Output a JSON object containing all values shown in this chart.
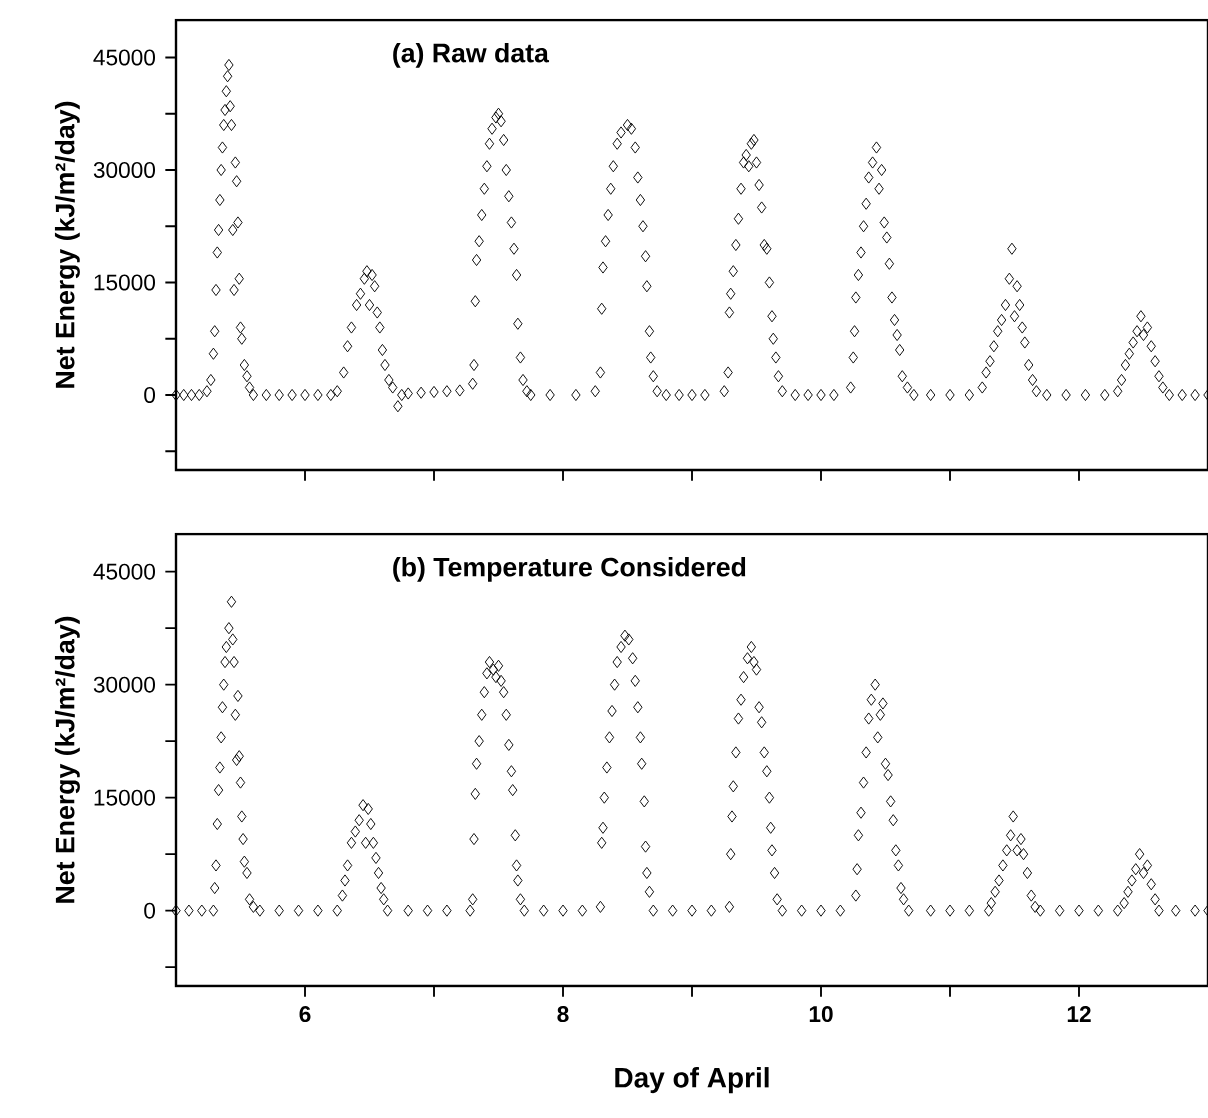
{
  "chart_data": [
    {
      "type": "scatter",
      "title": "(a) Raw data",
      "ylabel": "Net Energy (kJ/m²/day)",
      "xlim": [
        5,
        13
      ],
      "ylim": [
        -10000,
        50000
      ],
      "tick_labels": "y",
      "marker": "diamond",
      "xticks": [
        {
          "value": 6,
          "label": null
        },
        {
          "value": 7,
          "label": null
        },
        {
          "value": 8,
          "label": null
        },
        {
          "value": 9,
          "label": null
        },
        {
          "value": 10,
          "label": null
        },
        {
          "value": 11,
          "label": null
        },
        {
          "value": 12,
          "label": null
        }
      ],
      "yticks": [
        {
          "value": -7500,
          "label": null
        },
        0,
        {
          "value": 7500,
          "label": null
        },
        15000,
        {
          "value": 22500,
          "label": null
        },
        30000,
        {
          "value": 37500,
          "label": null
        },
        45000
      ],
      "series": [
        {
          "color": "#000000",
          "x": [
            5.0,
            5.06,
            5.12,
            5.18,
            5.24,
            5.27,
            5.29,
            5.3,
            5.31,
            5.32,
            5.33,
            5.34,
            5.35,
            5.36,
            5.37,
            5.38,
            5.39,
            5.4,
            5.41,
            5.42,
            5.43,
            5.44,
            5.45,
            5.46,
            5.47,
            5.48,
            5.49,
            5.5,
            5.51,
            5.53,
            5.55,
            5.57,
            5.6,
            5.7,
            5.8,
            5.9,
            6.0,
            6.1,
            6.2,
            6.25,
            6.3,
            6.33,
            6.36,
            6.4,
            6.43,
            6.46,
            6.48,
            6.5,
            6.52,
            6.54,
            6.56,
            6.58,
            6.6,
            6.62,
            6.65,
            6.68,
            6.72,
            6.75,
            6.8,
            6.9,
            7.0,
            7.1,
            7.2,
            7.3,
            7.31,
            7.32,
            7.33,
            7.35,
            7.37,
            7.39,
            7.41,
            7.43,
            7.45,
            7.48,
            7.5,
            7.52,
            7.54,
            7.56,
            7.58,
            7.6,
            7.62,
            7.64,
            7.65,
            7.67,
            7.69,
            7.72,
            7.75,
            7.9,
            8.1,
            8.25,
            8.29,
            8.3,
            8.31,
            8.33,
            8.35,
            8.37,
            8.39,
            8.42,
            8.45,
            8.5,
            8.53,
            8.56,
            8.58,
            8.6,
            8.62,
            8.64,
            8.65,
            8.67,
            8.68,
            8.7,
            8.73,
            8.8,
            8.9,
            9.0,
            9.1,
            9.25,
            9.28,
            9.29,
            9.3,
            9.32,
            9.34,
            9.36,
            9.38,
            9.4,
            9.42,
            9.44,
            9.46,
            9.48,
            9.5,
            9.52,
            9.54,
            9.56,
            9.58,
            9.6,
            9.62,
            9.63,
            9.65,
            9.67,
            9.7,
            9.8,
            9.9,
            10.0,
            10.1,
            10.23,
            10.25,
            10.26,
            10.27,
            10.29,
            10.31,
            10.33,
            10.35,
            10.37,
            10.4,
            10.43,
            10.45,
            10.47,
            10.49,
            10.51,
            10.53,
            10.55,
            10.57,
            10.59,
            10.61,
            10.63,
            10.67,
            10.72,
            10.85,
            11.0,
            11.15,
            11.25,
            11.28,
            11.31,
            11.34,
            11.37,
            11.4,
            11.43,
            11.46,
            11.48,
            11.5,
            11.52,
            11.54,
            11.56,
            11.58,
            11.61,
            11.64,
            11.67,
            11.75,
            11.9,
            12.05,
            12.2,
            12.3,
            12.33,
            12.36,
            12.39,
            12.42,
            12.45,
            12.48,
            12.5,
            12.53,
            12.56,
            12.59,
            12.62,
            12.65,
            12.7,
            12.8,
            12.9,
            13.0
          ],
          "values": [
            0,
            0,
            0,
            0,
            500,
            2000,
            5500,
            8500,
            14000,
            19000,
            22000,
            26000,
            30000,
            33000,
            36000,
            38000,
            40500,
            42500,
            44000,
            38500,
            36000,
            22000,
            14000,
            31000,
            28500,
            23000,
            15500,
            9000,
            7500,
            4000,
            2500,
            1000,
            0,
            0,
            0,
            0,
            0,
            0,
            0,
            500,
            3000,
            6500,
            9000,
            12000,
            13500,
            15500,
            16500,
            12000,
            16000,
            14500,
            11000,
            9000,
            6000,
            4000,
            2000,
            1000,
            -1500,
            0,
            200,
            300,
            400,
            500,
            600,
            1500,
            4000,
            12500,
            18000,
            20500,
            24000,
            27500,
            30500,
            33500,
            35500,
            37000,
            37500,
            36500,
            34000,
            30000,
            26500,
            23000,
            19500,
            16000,
            9500,
            5000,
            2000,
            500,
            0,
            0,
            0,
            500,
            3000,
            11500,
            17000,
            20500,
            24000,
            27500,
            30500,
            33500,
            35000,
            36000,
            35500,
            33000,
            29000,
            26000,
            22500,
            18500,
            14500,
            8500,
            5000,
            2500,
            500,
            0,
            0,
            0,
            0,
            500,
            3000,
            11000,
            13500,
            16500,
            20000,
            23500,
            27500,
            31000,
            32000,
            30500,
            33500,
            34000,
            31000,
            28000,
            25000,
            20000,
            19500,
            15000,
            10500,
            7500,
            5000,
            2500,
            500,
            0,
            0,
            0,
            0,
            1000,
            5000,
            8500,
            13000,
            16000,
            19000,
            22500,
            25500,
            29000,
            31000,
            33000,
            27500,
            30000,
            23000,
            21000,
            17500,
            13000,
            10000,
            8000,
            6000,
            2500,
            1000,
            0,
            0,
            0,
            0,
            1000,
            3000,
            4500,
            6500,
            8500,
            10000,
            12000,
            15500,
            19500,
            10500,
            14500,
            12000,
            9000,
            7000,
            4000,
            2000,
            500,
            0,
            0,
            0,
            0,
            500,
            2000,
            4000,
            5500,
            7000,
            8500,
            10500,
            8000,
            9000,
            6500,
            4500,
            2500,
            1000,
            0,
            0,
            0,
            0
          ]
        }
      ]
    },
    {
      "type": "scatter",
      "title": "(b) Temperature Considered",
      "ylabel": "Net Energy (kJ/m²/day)",
      "xlabel": "Day of April",
      "xlim": [
        5,
        13
      ],
      "ylim": [
        -10000,
        50000
      ],
      "marker": "diamond",
      "xticks": [
        6,
        {
          "value": 7,
          "label": null
        },
        8,
        {
          "value": 9,
          "label": null
        },
        10,
        {
          "value": 11,
          "label": null
        },
        12
      ],
      "yticks": [
        {
          "value": -7500,
          "label": null
        },
        0,
        {
          "value": 7500,
          "label": null
        },
        15000,
        {
          "value": 22500,
          "label": null
        },
        30000,
        {
          "value": 37500,
          "label": null
        },
        45000
      ],
      "series": [
        {
          "color": "#000000",
          "x": [
            5.0,
            5.1,
            5.2,
            5.29,
            5.3,
            5.31,
            5.32,
            5.33,
            5.34,
            5.35,
            5.36,
            5.37,
            5.38,
            5.39,
            5.41,
            5.43,
            5.44,
            5.45,
            5.46,
            5.47,
            5.48,
            5.49,
            5.5,
            5.51,
            5.52,
            5.53,
            5.55,
            5.57,
            5.6,
            5.65,
            5.8,
            5.95,
            6.1,
            6.25,
            6.29,
            6.31,
            6.33,
            6.36,
            6.39,
            6.42,
            6.45,
            6.47,
            6.49,
            6.51,
            6.53,
            6.55,
            6.57,
            6.59,
            6.61,
            6.64,
            6.8,
            6.95,
            7.1,
            7.28,
            7.3,
            7.31,
            7.32,
            7.33,
            7.35,
            7.37,
            7.39,
            7.41,
            7.43,
            7.46,
            7.48,
            7.5,
            7.52,
            7.54,
            7.56,
            7.58,
            7.6,
            7.61,
            7.63,
            7.64,
            7.65,
            7.67,
            7.7,
            7.85,
            8.0,
            8.15,
            8.29,
            8.3,
            8.31,
            8.32,
            8.34,
            8.36,
            8.38,
            8.4,
            8.42,
            8.45,
            8.48,
            8.51,
            8.54,
            8.56,
            8.58,
            8.6,
            8.61,
            8.63,
            8.64,
            8.65,
            8.67,
            8.7,
            8.85,
            9.0,
            9.15,
            9.29,
            9.3,
            9.31,
            9.32,
            9.34,
            9.36,
            9.38,
            9.4,
            9.43,
            9.46,
            9.48,
            9.5,
            9.52,
            9.54,
            9.56,
            9.58,
            9.6,
            9.61,
            9.62,
            9.64,
            9.66,
            9.7,
            9.85,
            10.0,
            10.15,
            10.27,
            10.28,
            10.29,
            10.31,
            10.33,
            10.35,
            10.37,
            10.39,
            10.42,
            10.44,
            10.46,
            10.48,
            10.5,
            10.52,
            10.54,
            10.56,
            10.58,
            10.6,
            10.62,
            10.64,
            10.68,
            10.85,
            11.0,
            11.15,
            11.3,
            11.32,
            11.35,
            11.38,
            11.41,
            11.44,
            11.47,
            11.49,
            11.52,
            11.55,
            11.57,
            11.6,
            11.63,
            11.66,
            11.7,
            11.85,
            12.0,
            12.15,
            12.3,
            12.35,
            12.38,
            12.41,
            12.44,
            12.47,
            12.5,
            12.53,
            12.56,
            12.59,
            12.62,
            12.75,
            12.9,
            13.0
          ],
          "values": [
            0,
            0,
            0,
            0,
            3000,
            6000,
            11500,
            16000,
            19000,
            23000,
            27000,
            30000,
            33000,
            35000,
            37500,
            41000,
            36000,
            33000,
            26000,
            20000,
            28500,
            20500,
            17000,
            12500,
            9500,
            6500,
            5000,
            1500,
            500,
            0,
            0,
            0,
            0,
            0,
            2000,
            4000,
            6000,
            9000,
            10500,
            12000,
            14000,
            9000,
            13500,
            11500,
            9000,
            7000,
            5000,
            3000,
            1500,
            0,
            0,
            0,
            0,
            0,
            1500,
            9500,
            15500,
            19500,
            22500,
            26000,
            29000,
            31500,
            33000,
            32000,
            31000,
            32500,
            30500,
            29000,
            26000,
            22000,
            18500,
            16000,
            10000,
            6000,
            4000,
            1500,
            0,
            0,
            0,
            0,
            500,
            9000,
            11000,
            15000,
            19000,
            23000,
            26500,
            30000,
            33000,
            35000,
            36500,
            36000,
            33500,
            30500,
            27000,
            23000,
            19500,
            14500,
            8500,
            5000,
            2500,
            0,
            0,
            0,
            0,
            500,
            7500,
            12500,
            16500,
            21000,
            25500,
            28000,
            31000,
            33500,
            35000,
            33000,
            32000,
            27000,
            25000,
            21000,
            18500,
            15000,
            11000,
            8000,
            5000,
            1500,
            0,
            0,
            0,
            0,
            2000,
            5500,
            10000,
            13000,
            17000,
            21000,
            25500,
            28000,
            30000,
            23000,
            26000,
            27500,
            19500,
            18000,
            14500,
            12000,
            8000,
            6000,
            3000,
            1500,
            0,
            0,
            0,
            0,
            0,
            1000,
            2500,
            4000,
            6000,
            8000,
            10000,
            12500,
            8000,
            9500,
            7500,
            5000,
            2000,
            500,
            0,
            0,
            0,
            0,
            0,
            1000,
            2500,
            4000,
            5500,
            7500,
            5000,
            6000,
            3500,
            1500,
            0,
            0,
            0,
            0
          ]
        }
      ]
    }
  ]
}
